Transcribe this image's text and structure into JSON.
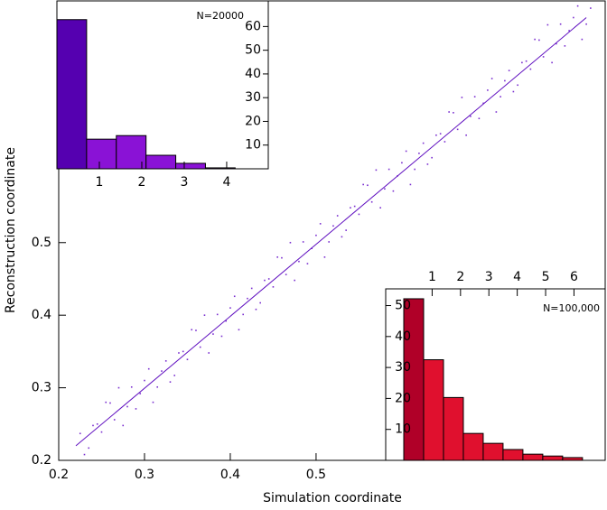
{
  "chart_data": [
    {
      "type": "scatter",
      "xlabel": "Simulation coordinate",
      "ylabel": "Reconstruction coordinate",
      "xlim": [
        0.2,
        0.837
      ],
      "ylim": [
        0.2,
        0.833
      ],
      "xticks": [
        0.2,
        0.3,
        0.4,
        0.5
      ],
      "yticks": [
        0.2,
        0.3,
        0.4,
        0.5
      ],
      "color": "#7a2ed0",
      "x": [
        0.225,
        0.235,
        0.245,
        0.255,
        0.265,
        0.275,
        0.285,
        0.295,
        0.305,
        0.315,
        0.325,
        0.335,
        0.345,
        0.355,
        0.365,
        0.375,
        0.385,
        0.395,
        0.405,
        0.415,
        0.425,
        0.435,
        0.445,
        0.455,
        0.465,
        0.475,
        0.485,
        0.495,
        0.505,
        0.515,
        0.525,
        0.535,
        0.545,
        0.555,
        0.565,
        0.575,
        0.585,
        0.595,
        0.605,
        0.615,
        0.625,
        0.635,
        0.645,
        0.655,
        0.665,
        0.675,
        0.685,
        0.695,
        0.705,
        0.715,
        0.725,
        0.735,
        0.745,
        0.755,
        0.765,
        0.775,
        0.785,
        0.795,
        0.805,
        0.815,
        0.23,
        0.24,
        0.25,
        0.26,
        0.27,
        0.28,
        0.29,
        0.3,
        0.31,
        0.32,
        0.33,
        0.34,
        0.35,
        0.36,
        0.37,
        0.38,
        0.39,
        0.4,
        0.41,
        0.42,
        0.43,
        0.44,
        0.45,
        0.46,
        0.47,
        0.48,
        0.49,
        0.5,
        0.51,
        0.52,
        0.53,
        0.54,
        0.55,
        0.56,
        0.57,
        0.58,
        0.59,
        0.6,
        0.61,
        0.62,
        0.63,
        0.64,
        0.65,
        0.66,
        0.67,
        0.68,
        0.69,
        0.7,
        0.71,
        0.72,
        0.73,
        0.74,
        0.75,
        0.76,
        0.77,
        0.78,
        0.79,
        0.8,
        0.81,
        0.82
      ],
      "y": [
        0.237,
        0.217,
        0.25,
        0.28,
        0.256,
        0.248,
        0.301,
        0.292,
        0.326,
        0.301,
        0.337,
        0.317,
        0.35,
        0.38,
        0.356,
        0.348,
        0.401,
        0.392,
        0.426,
        0.401,
        0.437,
        0.417,
        0.45,
        0.48,
        0.456,
        0.448,
        0.501,
        0.492,
        0.526,
        0.501,
        0.537,
        0.517,
        0.55,
        0.58,
        0.556,
        0.548,
        0.601,
        0.592,
        0.626,
        0.601,
        0.637,
        0.617,
        0.65,
        0.68,
        0.656,
        0.648,
        0.701,
        0.692,
        0.726,
        0.701,
        0.737,
        0.717,
        0.75,
        0.78,
        0.756,
        0.748,
        0.801,
        0.792,
        0.826,
        0.801,
        0.208,
        0.248,
        0.239,
        0.279,
        0.3,
        0.274,
        0.271,
        0.31,
        0.28,
        0.323,
        0.308,
        0.348,
        0.339,
        0.379,
        0.4,
        0.374,
        0.371,
        0.41,
        0.38,
        0.423,
        0.408,
        0.448,
        0.439,
        0.479,
        0.5,
        0.474,
        0.471,
        0.51,
        0.48,
        0.523,
        0.508,
        0.548,
        0.539,
        0.579,
        0.6,
        0.574,
        0.571,
        0.61,
        0.58,
        0.623,
        0.608,
        0.648,
        0.639,
        0.679,
        0.7,
        0.674,
        0.671,
        0.71,
        0.68,
        0.723,
        0.708,
        0.748,
        0.739,
        0.779,
        0.8,
        0.774,
        0.771,
        0.81,
        0.78,
        0.823
      ],
      "fit": {
        "color": "#6010c0",
        "x": [
          0.22,
          0.815
        ],
        "y": [
          0.22,
          0.81
        ]
      }
    },
    {
      "type": "histogram",
      "annotation": "N=20000",
      "bins": [
        0,
        0.7,
        1.4,
        2.1,
        2.8,
        3.5,
        4.2
      ],
      "counts": [
        62.9,
        12.5,
        14,
        5.7,
        2.3,
        0.4
      ],
      "colors": [
        "#5500b0",
        "#8a12d6",
        "#8a12d6",
        "#8a12d6",
        "#8a12d6",
        "#8a12d6"
      ],
      "xlim": [
        0,
        4.98
      ],
      "ylim": [
        0,
        70.8
      ],
      "xticks": [
        1,
        2,
        3,
        4
      ],
      "yticks": [
        10,
        20,
        30,
        40,
        50,
        60
      ]
    },
    {
      "type": "histogram",
      "annotation": "N=100,000",
      "bins": [
        0,
        0.7,
        1.4,
        2.1,
        2.8,
        3.5,
        4.2,
        4.9,
        5.6,
        6.3
      ],
      "counts": [
        52.2,
        32.5,
        20.3,
        8.7,
        5.5,
        3.5,
        2.0,
        1.4,
        0.9
      ],
      "colors": [
        "#b00028",
        "#e0102e",
        "#e0102e",
        "#e0102e",
        "#e0102e",
        "#e0102e",
        "#e0102e",
        "#e0102e",
        "#e0102e"
      ],
      "xlim": [
        -0.637,
        7.1
      ],
      "ylim": [
        0,
        55.4
      ],
      "xticks": [
        1,
        2,
        3,
        4,
        5,
        6
      ],
      "yticks": [
        10,
        20,
        30,
        40,
        50
      ]
    }
  ]
}
